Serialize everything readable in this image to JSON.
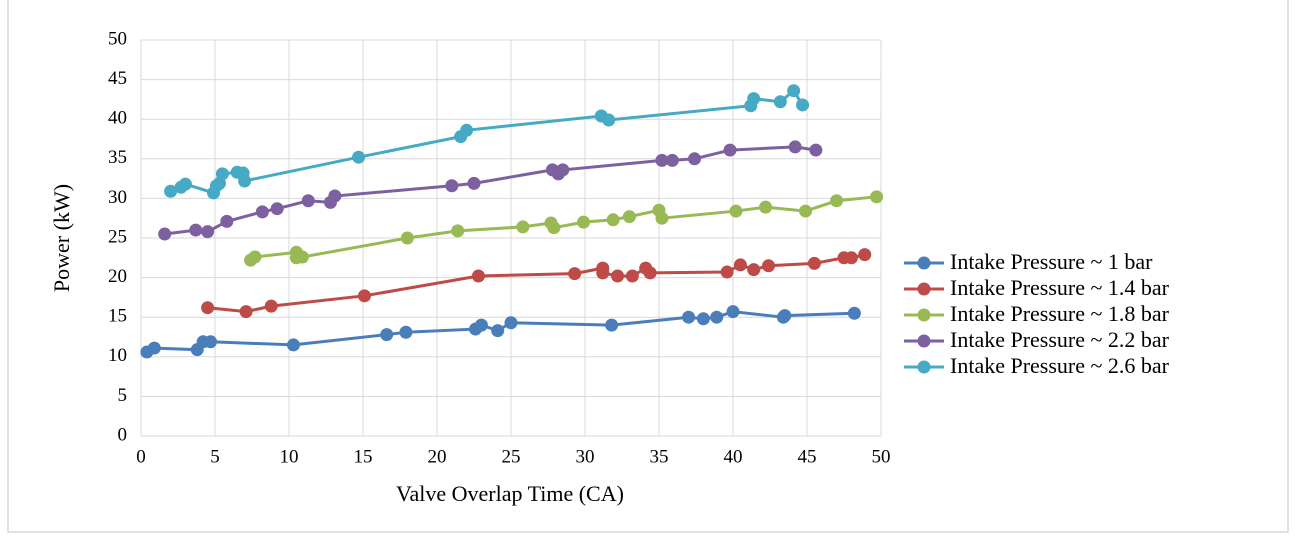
{
  "chart_data": {
    "type": "line",
    "x_label": "Valve Overlap Time (CA)",
    "y_label": "Power (kW)",
    "xlim": [
      0,
      50
    ],
    "xticks": [
      0,
      5,
      10,
      15,
      20,
      25,
      30,
      35,
      40,
      45,
      50
    ],
    "ylim": [
      0,
      50
    ],
    "yticks": [
      0,
      5,
      10,
      15,
      20,
      25,
      30,
      35,
      40,
      45,
      50
    ],
    "grid": true,
    "legend": "right",
    "series": [
      {
        "name": "Intake Pressure ~ 1 bar",
        "color": "#4a7ebb",
        "x": [
          0.4,
          0.9,
          3.8,
          4.2,
          4.7,
          10.3,
          16.6,
          17.9,
          22.6,
          23.0,
          24.1,
          25.0,
          31.8,
          37.0,
          38.0,
          38.9,
          40.0,
          43.4,
          43.5,
          48.2
        ],
        "values": [
          10.6,
          11.1,
          10.9,
          11.9,
          11.9,
          11.5,
          12.8,
          13.1,
          13.5,
          14.0,
          13.3,
          14.3,
          14.0,
          15.0,
          14.8,
          15.0,
          15.7,
          15.0,
          15.2,
          15.5
        ]
      },
      {
        "name": "Intake Pressure ~ 1.4 bar",
        "color": "#be4b48",
        "x": [
          4.5,
          7.1,
          8.8,
          15.1,
          22.8,
          29.3,
          31.2,
          31.2,
          32.2,
          33.2,
          34.1,
          34.4,
          39.6,
          40.5,
          41.4,
          42.4,
          45.5,
          47.5,
          48.0,
          48.9
        ],
        "values": [
          16.2,
          15.7,
          16.4,
          17.7,
          20.2,
          20.5,
          21.2,
          20.6,
          20.2,
          20.2,
          21.2,
          20.6,
          20.7,
          21.6,
          21.0,
          21.5,
          21.8,
          22.5,
          22.5,
          22.9
        ]
      },
      {
        "name": "Intake Pressure ~ 1.8 bar",
        "color": "#98b954",
        "x": [
          7.4,
          7.7,
          10.5,
          10.5,
          10.9,
          18.0,
          21.4,
          25.8,
          27.7,
          27.9,
          29.9,
          31.9,
          33.0,
          35.0,
          35.2,
          40.2,
          42.2,
          44.9,
          47.0,
          49.7
        ],
        "values": [
          22.2,
          22.6,
          23.2,
          22.5,
          22.6,
          25.0,
          25.9,
          26.4,
          26.9,
          26.3,
          27.0,
          27.3,
          27.7,
          28.5,
          27.5,
          28.4,
          28.9,
          28.4,
          29.7,
          30.2
        ]
      },
      {
        "name": "Intake Pressure ~ 2.2 bar",
        "color": "#7d60a0",
        "x": [
          1.6,
          3.7,
          4.5,
          5.8,
          8.2,
          9.2,
          11.3,
          12.8,
          13.1,
          21.0,
          22.5,
          27.8,
          28.2,
          28.5,
          35.2,
          35.9,
          37.4,
          39.8,
          44.2,
          45.6
        ],
        "values": [
          25.5,
          26.0,
          25.8,
          27.1,
          28.3,
          28.7,
          29.7,
          29.5,
          30.3,
          31.6,
          31.9,
          33.6,
          33.1,
          33.6,
          34.8,
          34.8,
          35.0,
          36.1,
          36.5,
          36.1
        ]
      },
      {
        "name": "Intake Pressure ~ 2.6 bar",
        "color": "#46aac5",
        "x": [
          2.0,
          2.7,
          3.0,
          4.9,
          5.1,
          5.3,
          5.5,
          6.5,
          6.9,
          7.0,
          14.7,
          21.6,
          22.0,
          31.1,
          31.6,
          41.2,
          41.4,
          43.2,
          44.1,
          44.7
        ],
        "values": [
          30.9,
          31.4,
          31.8,
          30.7,
          31.6,
          31.9,
          33.1,
          33.3,
          33.2,
          32.2,
          35.2,
          37.8,
          38.6,
          40.4,
          39.9,
          41.7,
          42.6,
          42.2,
          43.6,
          41.8
        ]
      }
    ]
  }
}
